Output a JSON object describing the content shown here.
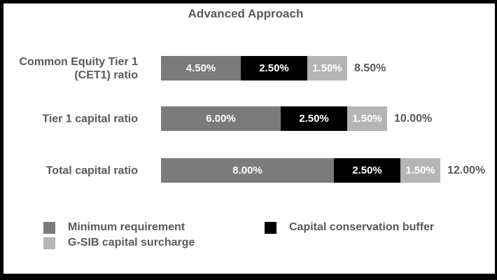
{
  "window": {
    "background": "#ffffff",
    "frame_color": "#000000",
    "text_color": "#595959"
  },
  "chart_data": {
    "type": "bar",
    "orientation": "horizontal",
    "stacked": true,
    "title": "Advanced Approach",
    "xlabel": "",
    "ylabel": "",
    "axis_min": 1.5,
    "grid": false,
    "legend_position": "bottom",
    "categories": [
      "Common Equity Tier 1 (CET1) ratio",
      "Tier 1 capital ratio",
      "Total capital ratio"
    ],
    "series": [
      {
        "name": "Minimum requirement",
        "color": "#7b7b7b",
        "values": [
          4.5,
          6.0,
          8.0
        ],
        "labels": [
          "4.50%",
          "6.00%",
          "8.00%"
        ]
      },
      {
        "name": "Capital conservation buffer",
        "color": "#000000",
        "values": [
          2.5,
          2.5,
          2.5
        ],
        "labels": [
          "2.50%",
          "2.50%",
          "2.50%"
        ]
      },
      {
        "name": "G-SIB capital surcharge",
        "color": "#b5b5b5",
        "values": [
          1.5,
          1.5,
          1.5
        ],
        "labels": [
          "1.50%",
          "1.50%",
          "1.50%"
        ]
      }
    ],
    "totals": [
      "8.50%",
      "10.00%",
      "12.00%"
    ],
    "legend": [
      {
        "label": "Minimum requirement",
        "color": "#7b7b7b"
      },
      {
        "label": "G-SIB capital surcharge",
        "color": "#b5b5b5"
      },
      {
        "label": "Capital conservation buffer",
        "color": "#000000"
      }
    ]
  }
}
